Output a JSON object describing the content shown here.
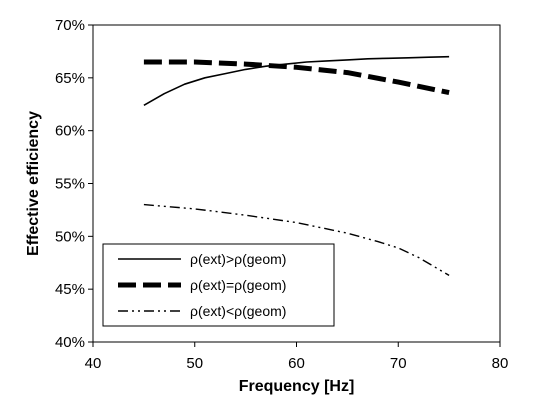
{
  "chart_data": {
    "type": "line",
    "xlabel": "Frequency [Hz]",
    "ylabel": "Effective efficiency",
    "xlim": [
      40,
      80
    ],
    "ylim": [
      40,
      70
    ],
    "x_ticks": [
      "40",
      "50",
      "60",
      "70",
      "80"
    ],
    "y_ticks": [
      "40%",
      "45%",
      "50%",
      "55%",
      "60%",
      "65%",
      "70%"
    ],
    "grid": false,
    "legend_position": "bottom-left",
    "series": [
      {
        "name": "ρ(ext)>ρ(geom)",
        "style": "solid",
        "x": [
          45,
          47,
          49,
          51,
          53,
          55,
          57,
          59,
          61,
          63,
          65,
          67,
          69,
          71,
          73,
          75
        ],
        "y": [
          62.4,
          63.5,
          64.4,
          65.0,
          65.4,
          65.8,
          66.1,
          66.3,
          66.5,
          66.6,
          66.7,
          66.8,
          66.85,
          66.9,
          66.95,
          67.0
        ]
      },
      {
        "name": "ρ(ext)=ρ(geom)",
        "style": "dashed",
        "x": [
          45,
          50,
          55,
          60,
          65,
          70,
          72,
          75
        ],
        "y": [
          66.5,
          66.5,
          66.3,
          66.0,
          65.5,
          64.6,
          64.2,
          63.6
        ]
      },
      {
        "name": "ρ(ext)<ρ(geom)",
        "style": "dash-dot-dot",
        "x": [
          45,
          50,
          55,
          60,
          65,
          68,
          70,
          72,
          75
        ],
        "y": [
          53.0,
          52.6,
          52.0,
          51.3,
          50.3,
          49.5,
          48.9,
          48.0,
          46.3
        ]
      }
    ]
  }
}
